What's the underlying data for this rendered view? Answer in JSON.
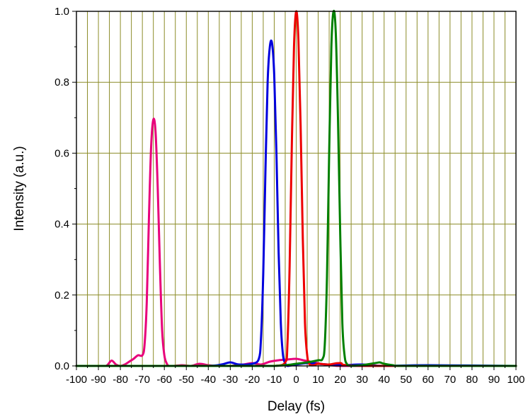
{
  "chart_data": {
    "type": "line",
    "title": "",
    "xlabel": "Delay (fs)",
    "ylabel": "Intensity (a.u.)",
    "xlim": [
      -100,
      100
    ],
    "ylim": [
      0,
      1.0
    ],
    "xticks": [
      -100,
      -90,
      -80,
      -70,
      -60,
      -50,
      -40,
      -30,
      -20,
      -10,
      0,
      10,
      20,
      30,
      40,
      50,
      60,
      70,
      80,
      90,
      100
    ],
    "yticks": [
      0.0,
      0.2,
      0.4,
      0.6,
      0.8,
      1.0
    ],
    "ytick_labels": [
      "0.0",
      "0.2",
      "0.4",
      "0.6",
      "0.8",
      "1.0"
    ],
    "grid": true,
    "grid_color": "#8c8c28",
    "series": [
      {
        "color": "#e8007a",
        "x": [
          -100,
          -88,
          -86,
          -84,
          -82,
          -80,
          -78,
          -76,
          -74,
          -72,
          -70,
          -69,
          -68,
          -67,
          -66,
          -65,
          -64,
          -63,
          -62,
          -61,
          -60,
          -59,
          -58,
          -56,
          -52,
          -48,
          -44,
          -40,
          -36,
          -30,
          -24,
          -20,
          -16,
          -12,
          -8,
          -4,
          0,
          4,
          8,
          12,
          16,
          20,
          30,
          40,
          60,
          80,
          100
        ],
        "y": [
          0.0,
          0.0,
          0.002,
          0.015,
          0.004,
          0.0,
          0.004,
          0.012,
          0.02,
          0.03,
          0.03,
          0.06,
          0.18,
          0.42,
          0.62,
          0.695,
          0.66,
          0.5,
          0.28,
          0.1,
          0.03,
          0.008,
          0.0,
          0.0,
          0.002,
          0.0,
          0.006,
          0.002,
          0.0,
          0.0,
          0.004,
          0.008,
          0.004,
          0.012,
          0.016,
          0.018,
          0.02,
          0.015,
          0.01,
          0.005,
          0.002,
          0.0,
          0.0,
          0.0,
          0.0,
          0.0,
          0.0
        ]
      },
      {
        "color": "#0000dd",
        "x": [
          -100,
          -60,
          -40,
          -34,
          -30,
          -26,
          -20,
          -17,
          -16,
          -15,
          -14,
          -13,
          -12,
          -11,
          -10,
          -9,
          -8,
          -7,
          -6,
          -5,
          -4,
          0,
          5,
          10,
          20,
          30,
          40,
          60,
          100
        ],
        "y": [
          0.0,
          0.0,
          0.0,
          0.004,
          0.01,
          0.004,
          0.006,
          0.02,
          0.08,
          0.26,
          0.55,
          0.8,
          0.9,
          0.91,
          0.82,
          0.6,
          0.32,
          0.12,
          0.03,
          0.008,
          0.0,
          0.004,
          0.008,
          0.006,
          0.002,
          0.004,
          0.0,
          0.002,
          0.0
        ]
      },
      {
        "color": "#ee0000",
        "x": [
          -100,
          -20,
          -10,
          -5,
          -4,
          -3,
          -2,
          -1,
          0,
          1,
          2,
          3,
          4,
          5,
          6,
          8,
          10,
          15,
          20,
          30,
          100
        ],
        "y": [
          0.0,
          0.0,
          0.0,
          0.01,
          0.06,
          0.28,
          0.62,
          0.9,
          1.0,
          0.92,
          0.68,
          0.36,
          0.12,
          0.03,
          0.005,
          0.002,
          0.006,
          0.004,
          0.008,
          0.0,
          0.0
        ]
      },
      {
        "color": "#008000",
        "x": [
          -100,
          -20,
          -10,
          -5,
          0,
          5,
          10,
          12,
          13,
          14,
          15,
          16,
          17,
          18,
          19,
          20,
          21,
          22,
          23,
          25,
          30,
          36,
          38,
          40,
          44,
          50,
          100
        ],
        "y": [
          0.0,
          0.0,
          0.0,
          0.002,
          0.006,
          0.01,
          0.016,
          0.02,
          0.06,
          0.25,
          0.6,
          0.9,
          1.0,
          0.94,
          0.7,
          0.38,
          0.12,
          0.03,
          0.006,
          0.0,
          0.002,
          0.008,
          0.01,
          0.006,
          0.002,
          0.0,
          0.0
        ]
      }
    ]
  }
}
